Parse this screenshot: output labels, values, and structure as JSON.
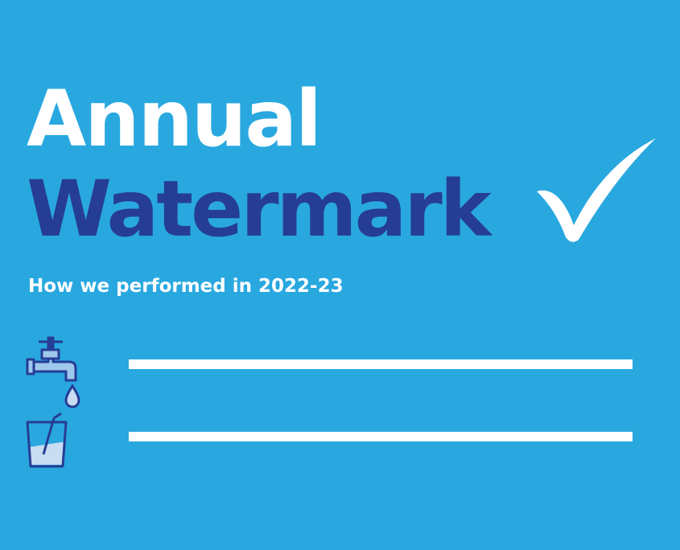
{
  "title_line1": "Annual",
  "title_line2": "Watermark",
  "subtitle": "How we performed in 2022-23",
  "icons": [
    "tap-icon",
    "water-drop-icon",
    "glass-icon",
    "checkmark-icon"
  ],
  "colors": {
    "background": "#29a8e0",
    "accent": "#263d95",
    "text": "#ffffff"
  }
}
